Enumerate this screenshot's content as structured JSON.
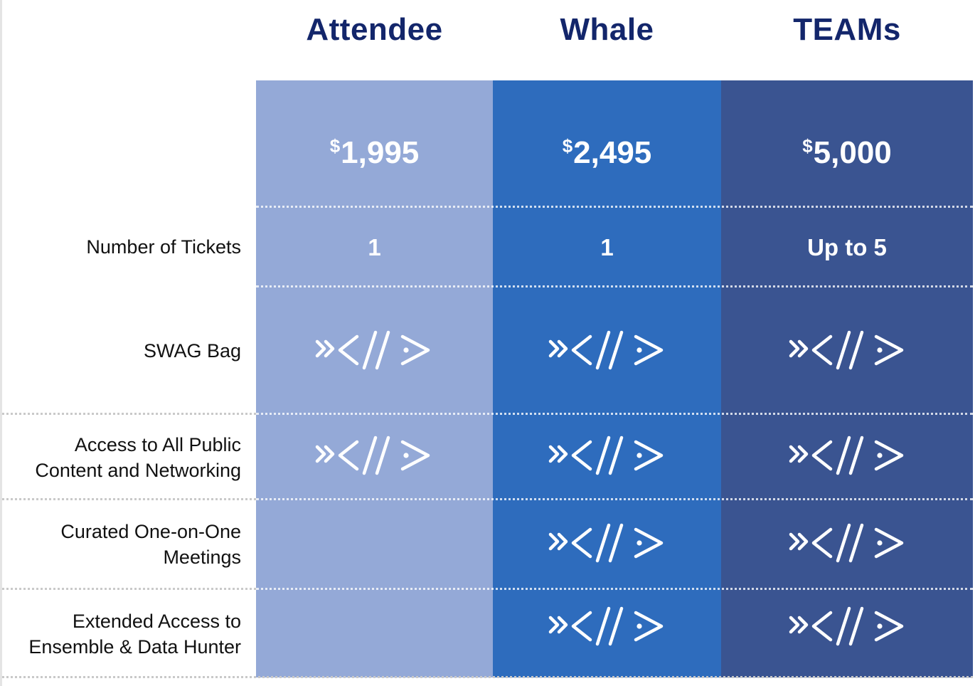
{
  "tiers": [
    {
      "name": "Attendee",
      "currency": "$",
      "price": "1,995",
      "tickets": "1",
      "color": "#94a9d7"
    },
    {
      "name": "Whale",
      "currency": "$",
      "price": "2,495",
      "tickets": "1",
      "color": "#2e6cbd"
    },
    {
      "name": "TEAMs",
      "currency": "$",
      "price": "5,000",
      "tickets": "Up to 5",
      "color": "#3a5491"
    }
  ],
  "rows": [
    {
      "label": "Number of Tickets"
    },
    {
      "label": "SWAG Bag",
      "included": [
        true,
        true,
        true
      ]
    },
    {
      "label": "Access to All Public\nContent and Networking",
      "included": [
        true,
        true,
        true
      ]
    },
    {
      "label": "Curated One-on-One\nMeetings",
      "included": [
        false,
        true,
        true
      ]
    },
    {
      "label": "Extended Access to\nEnsemble & Data Hunter",
      "included": [
        false,
        true,
        true
      ]
    }
  ],
  "checkmark_icon": "code-chevron-icon",
  "colors": {
    "title": "#13266b",
    "label": "#111111",
    "divider_white": "#c9c9c9",
    "divider_color": "#ffffff"
  }
}
